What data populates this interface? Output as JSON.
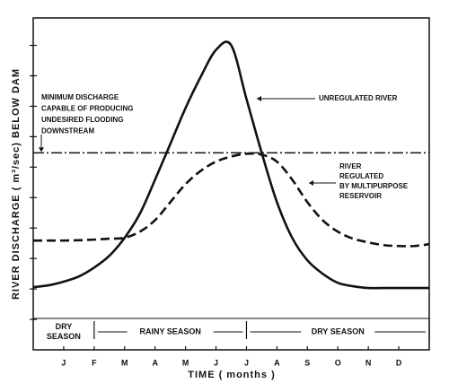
{
  "chart_data": {
    "type": "line",
    "ylabel": "RIVER DISCHARGE ( m³/sec) BELOW DAM",
    "xlabel": "TIME ( months )",
    "categories": [
      null,
      null,
      "J",
      null,
      "F",
      null,
      "M",
      null,
      "A",
      null,
      "M",
      null,
      "J",
      null,
      "J",
      null,
      "A",
      null,
      "S",
      null,
      "O",
      null,
      "N",
      null,
      "D",
      null,
      null
    ],
    "ylim": [
      0,
      109
    ],
    "yticks": [
      10,
      20,
      30,
      40,
      50,
      60,
      70,
      80,
      90,
      100
    ],
    "series": [
      {
        "label_lines": [
          "UNREGULATED RIVER"
        ],
        "color": "#111111",
        "style": "solid",
        "values": [
          20.6,
          21.2,
          22.4,
          24.1,
          27,
          30.9,
          36.8,
          44.7,
          55.9,
          67.6,
          79.4,
          89.7,
          98.5,
          100,
          82.4,
          64.7,
          48.5,
          36.8,
          29.4,
          25,
          22,
          20.9,
          20.3,
          20.3,
          20.3,
          20.3,
          20.3
        ]
      },
      {
        "label_lines": [
          "RIVER",
          "REGULATED",
          "BY MULTIPURPOSE",
          "RESERVOIR"
        ],
        "color": "#111111",
        "style": "dashed",
        "values": [
          35.9,
          35.9,
          35.9,
          36,
          36.2,
          36.5,
          36.8,
          38.8,
          42.6,
          48.5,
          54.4,
          58.8,
          61.8,
          63.5,
          64.4,
          64.1,
          61.8,
          55.9,
          48.5,
          42.6,
          38.8,
          36.5,
          35.3,
          34.4,
          34.1,
          34.1,
          34.7
        ]
      }
    ],
    "threshold": {
      "value": 64.7,
      "label_lines": [
        "MINIMUM DISCHARGE",
        "CAPABLE OF PRODUCING",
        "UNDESIRED FLOODING",
        "DOWNSTREAM"
      ]
    },
    "seasons": [
      {
        "label_lines": [
          "DRY",
          "SEASON"
        ],
        "from": 0,
        "to": 4
      },
      {
        "label_lines": [
          "RAINY SEASON"
        ],
        "from": 4,
        "to": 14
      },
      {
        "label_lines": [
          "DRY SEASON"
        ],
        "from": 14,
        "to": 26
      }
    ]
  }
}
